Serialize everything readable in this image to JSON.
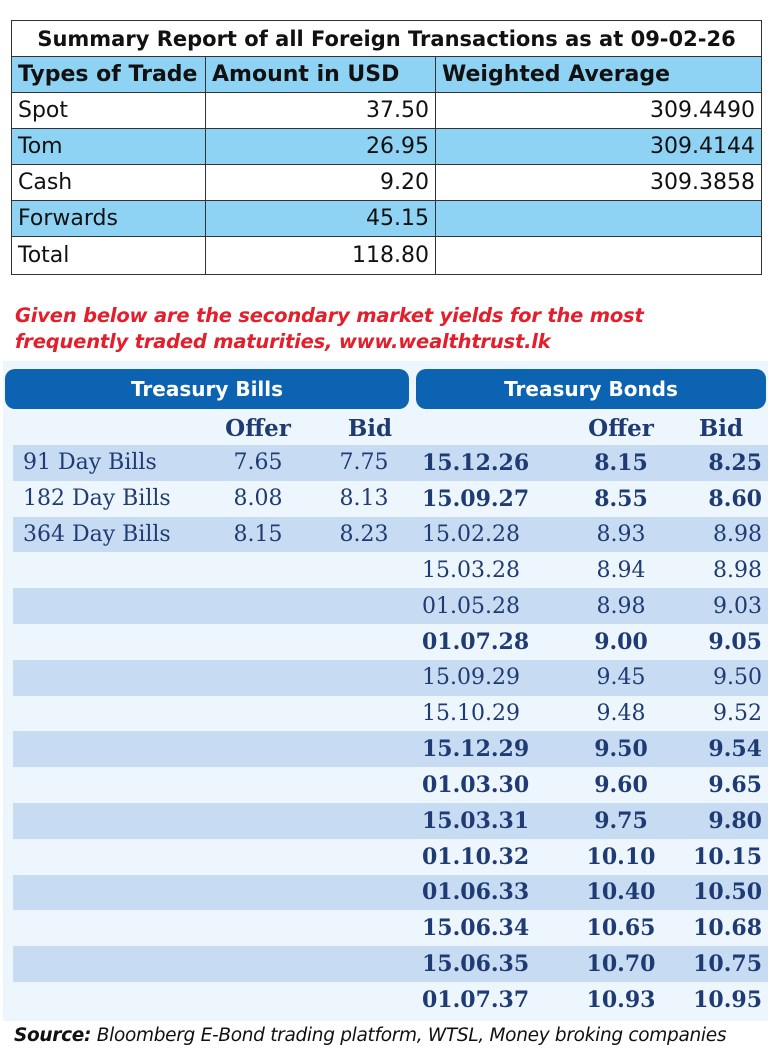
{
  "summary": {
    "title": "Summary Report of all Foreign Transactions as at 09-02-26",
    "headers": [
      "Types of Trade",
      "Amount in USD",
      "Weighted Average"
    ],
    "rows": [
      {
        "type": "Spot",
        "amount": "37.50",
        "wavg": "309.4490"
      },
      {
        "type": "Tom",
        "amount": "26.95",
        "wavg": "309.4144"
      },
      {
        "type": "Cash",
        "amount": "9.20",
        "wavg": "309.3858"
      },
      {
        "type": "Forwards",
        "amount": "45.15",
        "wavg": ""
      },
      {
        "type": "Total",
        "amount": "118.80",
        "wavg": ""
      }
    ]
  },
  "note": "Given below are the secondary market yields for the most frequently traded maturities, www.wealthtrust.lk",
  "yields": {
    "bills_title": "Treasury Bills",
    "bonds_title": "Treasury Bonds",
    "offer_label": "Offer",
    "bid_label": "Bid",
    "rows": [
      {
        "bill": "91 Day Bills",
        "bill_offer": "7.65",
        "bill_bid": "7.75",
        "bond": "15.12.26",
        "bond_offer": "8.15",
        "bond_bid": "8.25",
        "bold": true
      },
      {
        "bill": "182 Day Bills",
        "bill_offer": "8.08",
        "bill_bid": "8.13",
        "bond": "15.09.27",
        "bond_offer": "8.55",
        "bond_bid": "8.60",
        "bold": true
      },
      {
        "bill": "364 Day Bills",
        "bill_offer": "8.15",
        "bill_bid": "8.23",
        "bond": "15.02.28",
        "bond_offer": "8.93",
        "bond_bid": "8.98",
        "bold": false
      },
      {
        "bill": "",
        "bill_offer": "",
        "bill_bid": "",
        "bond": "15.03.28",
        "bond_offer": "8.94",
        "bond_bid": "8.98",
        "bold": false
      },
      {
        "bill": "",
        "bill_offer": "",
        "bill_bid": "",
        "bond": "01.05.28",
        "bond_offer": "8.98",
        "bond_bid": "9.03",
        "bold": false
      },
      {
        "bill": "",
        "bill_offer": "",
        "bill_bid": "",
        "bond": "01.07.28",
        "bond_offer": "9.00",
        "bond_bid": "9.05",
        "bold": true
      },
      {
        "bill": "",
        "bill_offer": "",
        "bill_bid": "",
        "bond": "15.09.29",
        "bond_offer": "9.45",
        "bond_bid": "9.50",
        "bold": false
      },
      {
        "bill": "",
        "bill_offer": "",
        "bill_bid": "",
        "bond": "15.10.29",
        "bond_offer": "9.48",
        "bond_bid": "9.52",
        "bold": false
      },
      {
        "bill": "",
        "bill_offer": "",
        "bill_bid": "",
        "bond": "15.12.29",
        "bond_offer": "9.50",
        "bond_bid": "9.54",
        "bold": true
      },
      {
        "bill": "",
        "bill_offer": "",
        "bill_bid": "",
        "bond": "01.03.30",
        "bond_offer": "9.60",
        "bond_bid": "9.65",
        "bold": true
      },
      {
        "bill": "",
        "bill_offer": "",
        "bill_bid": "",
        "bond": "15.03.31",
        "bond_offer": "9.75",
        "bond_bid": "9.80",
        "bold": true
      },
      {
        "bill": "",
        "bill_offer": "",
        "bill_bid": "",
        "bond": "01.10.32",
        "bond_offer": "10.10",
        "bond_bid": "10.15",
        "bold": true
      },
      {
        "bill": "",
        "bill_offer": "",
        "bill_bid": "",
        "bond": "01.06.33",
        "bond_offer": "10.40",
        "bond_bid": "10.50",
        "bold": true
      },
      {
        "bill": "",
        "bill_offer": "",
        "bill_bid": "",
        "bond": "15.06.34",
        "bond_offer": "10.65",
        "bond_bid": "10.68",
        "bold": true
      },
      {
        "bill": "",
        "bill_offer": "",
        "bill_bid": "",
        "bond": "15.06.35",
        "bond_offer": "10.70",
        "bond_bid": "10.75",
        "bold": true
      },
      {
        "bill": "",
        "bill_offer": "",
        "bill_bid": "",
        "bond": "01.07.37",
        "bond_offer": "10.93",
        "bond_bid": "10.95",
        "bold": true
      }
    ]
  },
  "source": {
    "label": "Source:",
    "text": " Bloomberg E-Bond trading platform, WTSL, Money broking companies"
  },
  "colors": {
    "summary_highlight": "#8fd3f4",
    "panel_header": "#0b63b1",
    "panel_shade": "#c7dcf2",
    "note_red": "#e41e2b",
    "table_text": "#1f3b73"
  }
}
